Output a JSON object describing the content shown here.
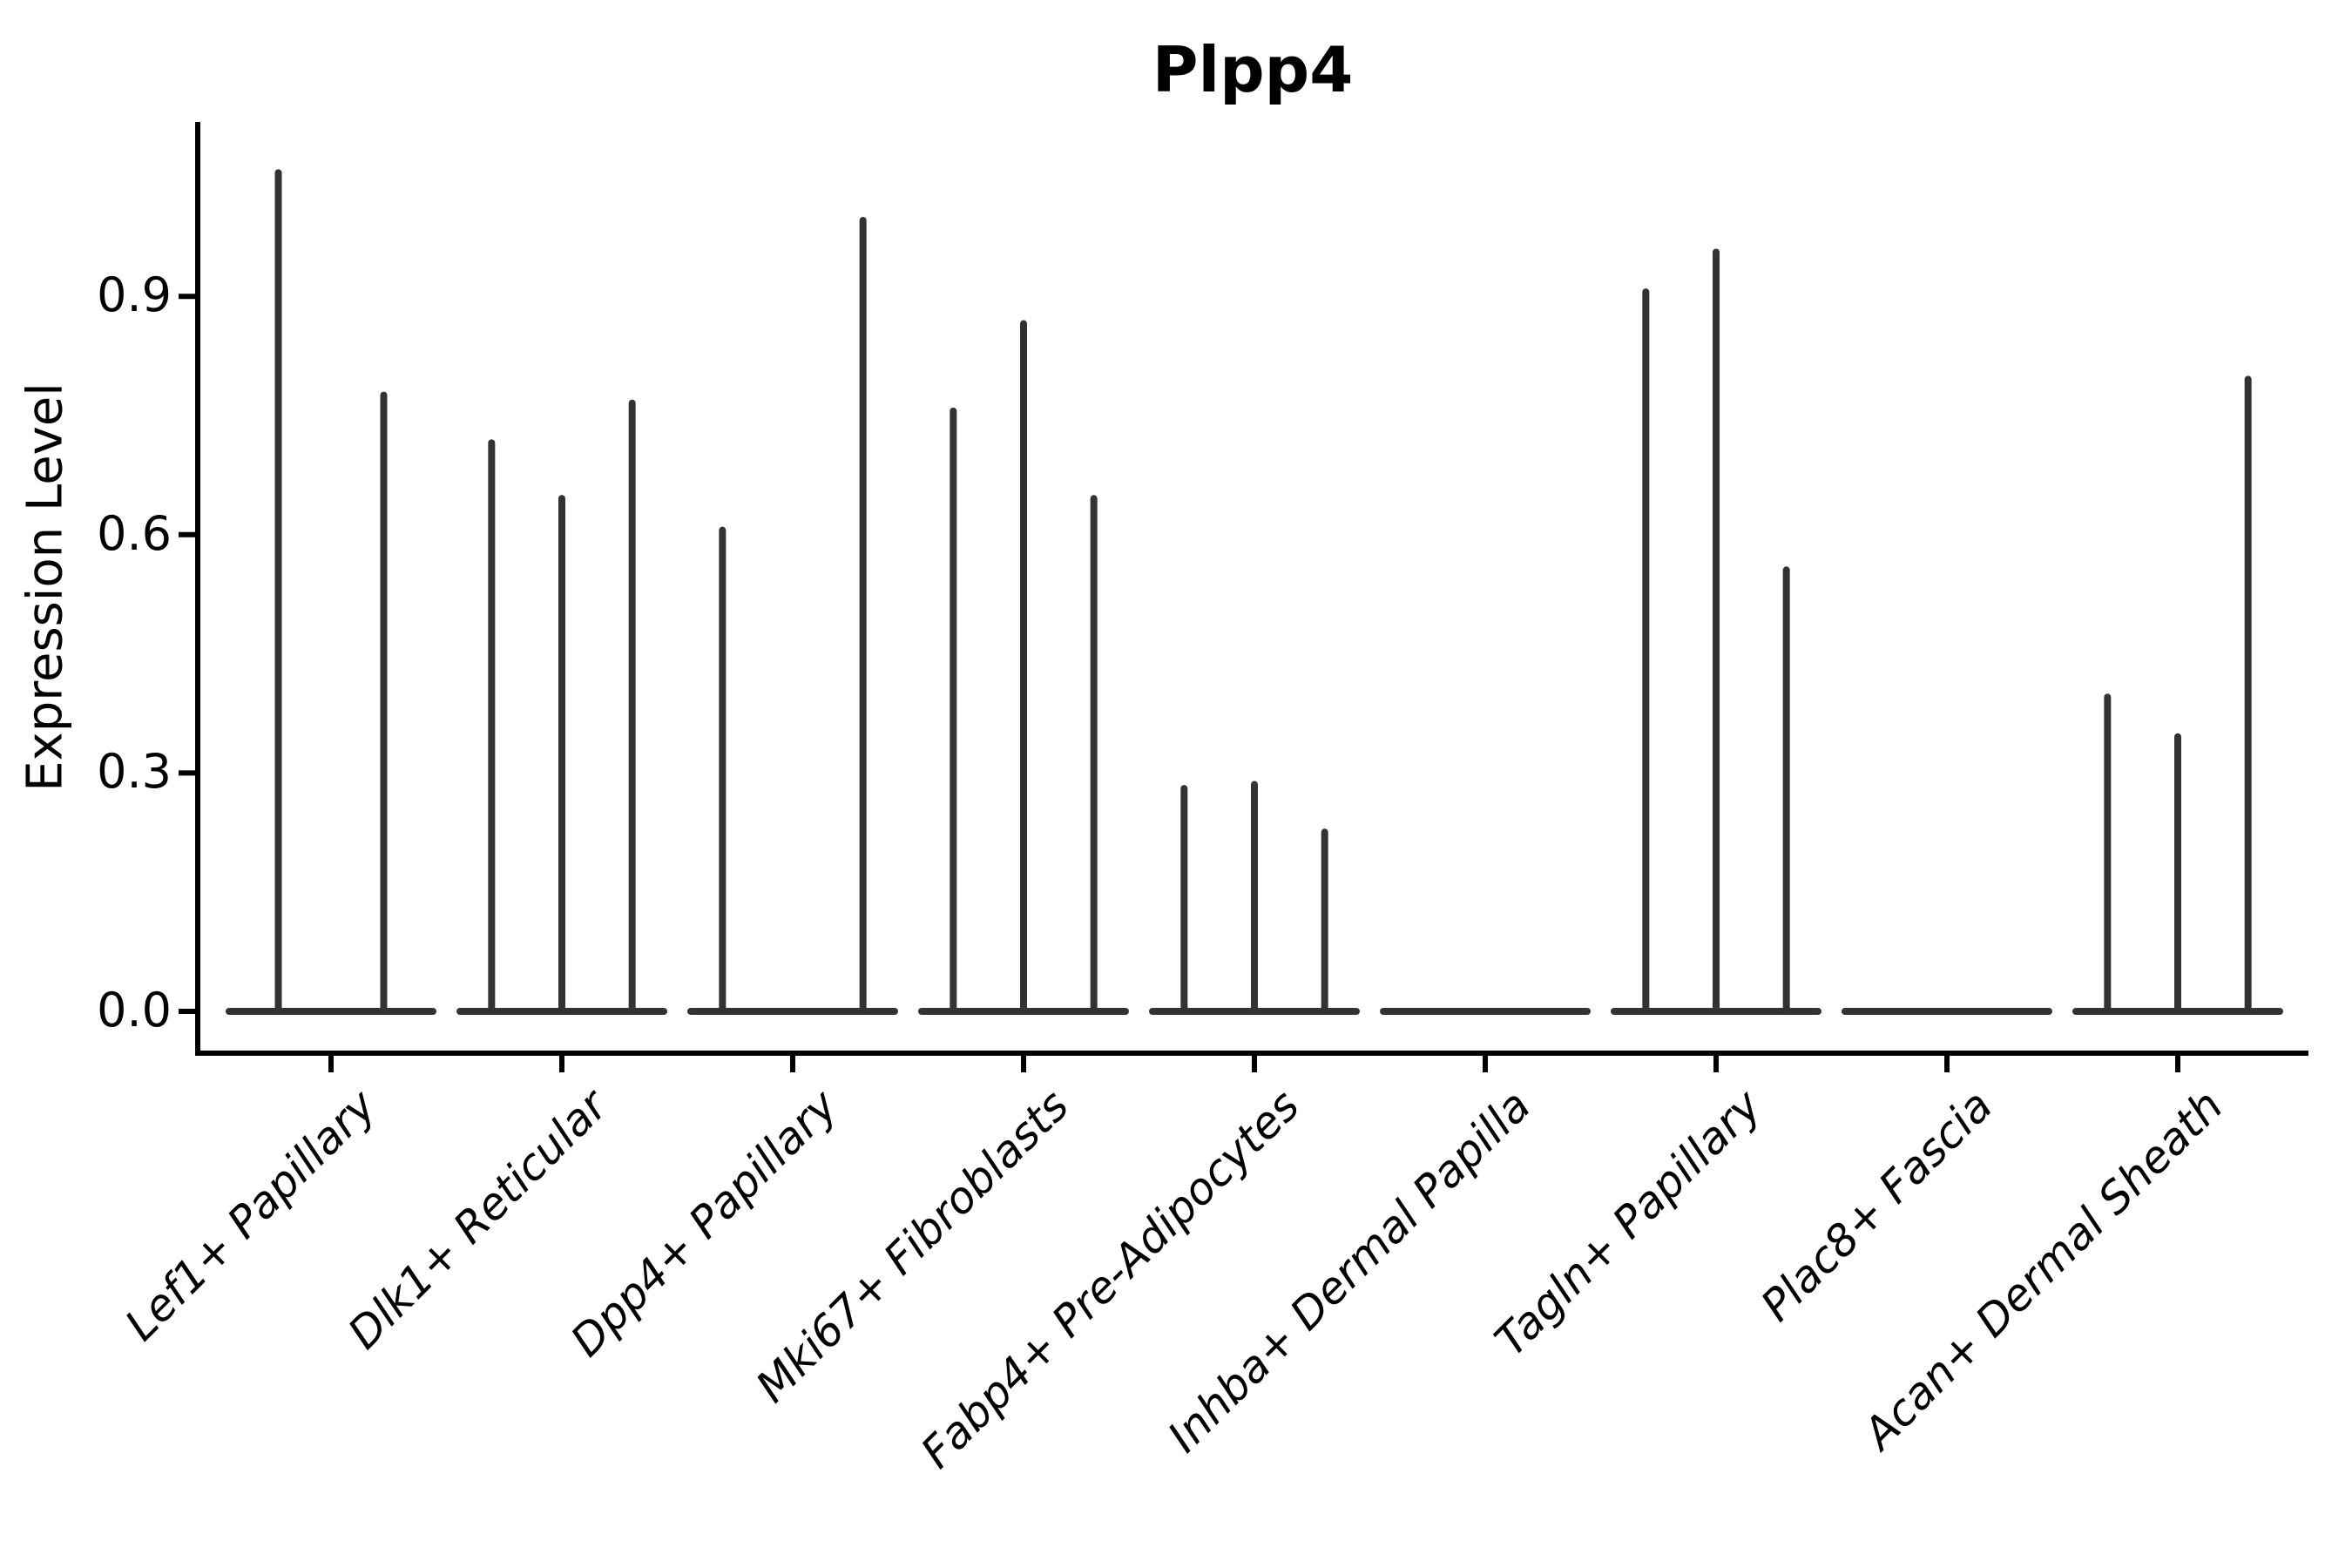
{
  "title": "Plpp4",
  "y_axis": {
    "label": "Expression Level",
    "tick_labels": [
      "0.0",
      "0.3",
      "0.6",
      "0.9"
    ],
    "tick_values": [
      0.0,
      0.3,
      0.6,
      0.9
    ]
  },
  "colors": {
    "violin_line": "#333333",
    "axis": "#000000",
    "text": "#000000",
    "background": "#ffffff"
  },
  "chart_data": {
    "type": "violin",
    "title": "Plpp4",
    "xlabel": "",
    "ylabel": "Expression Level",
    "ylim": [
      -0.05,
      1.12
    ],
    "yticks": [
      0.0,
      0.3,
      0.6,
      0.9
    ],
    "grid": false,
    "legend": null,
    "categories": [
      "Lef1+ Papillary",
      "Dlk1+ Reticular",
      "Dpp4+ Papillary",
      "Mki67+ Fibroblasts",
      "Fabp4+ Pre-Adipocytes",
      "Inhba+ Dermal Papilla",
      "Tagln+ Papillary",
      "Plac8+ Fascia",
      "Acan+ Dermal Sheath"
    ],
    "groups": [
      {
        "category": "Lef1+ Papillary",
        "violin_max": [
          1.06,
          0.78
        ]
      },
      {
        "category": "Dlk1+ Reticular",
        "violin_max": [
          0.72,
          0.65,
          0.77
        ]
      },
      {
        "category": "Dpp4+ Papillary",
        "violin_max": [
          0.61,
          0,
          1.0
        ]
      },
      {
        "category": "Mki67+ Fibroblasts",
        "violin_max": [
          0.76,
          0.87,
          0.65
        ]
      },
      {
        "category": "Fabp4+ Pre-Adipocytes",
        "violin_max": [
          0.285,
          0.29,
          0.23
        ]
      },
      {
        "category": "Inhba+ Dermal Papilla",
        "violin_max": [
          0,
          0,
          0
        ]
      },
      {
        "category": "Tagln+ Papillary",
        "violin_max": [
          0.91,
          0.96,
          0.56
        ]
      },
      {
        "category": "Plac8+ Fascia",
        "violin_max": [
          0,
          0,
          0
        ]
      },
      {
        "category": "Acan+ Dermal Sheath",
        "violin_max": [
          0.4,
          0.35,
          0.8
        ]
      }
    ]
  }
}
